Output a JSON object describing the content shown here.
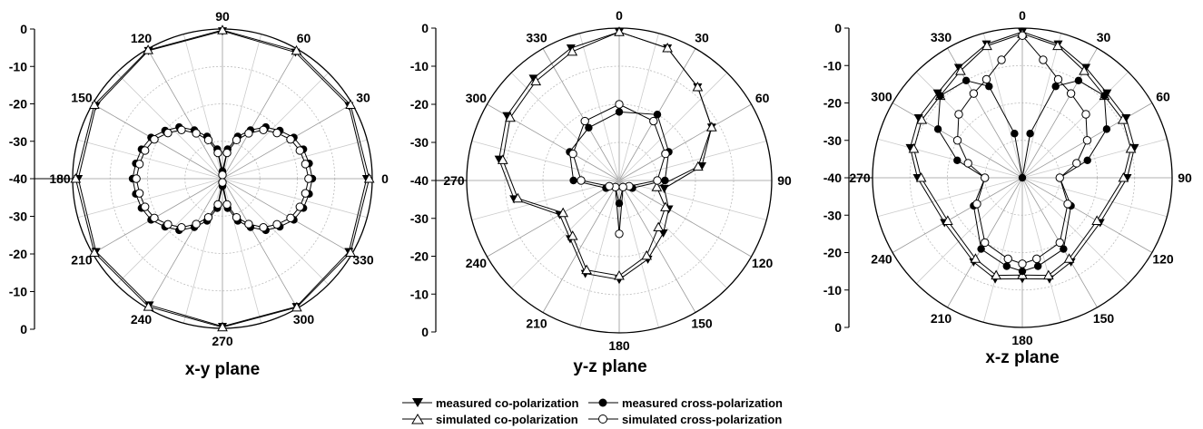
{
  "legend": {
    "entries": [
      {
        "label": "measured co-polarization",
        "marker": "down-triangle-filled"
      },
      {
        "label": "measured cross-polarization",
        "marker": "circle-filled"
      },
      {
        "label": "simulated co-polarization",
        "marker": "up-triangle-open"
      },
      {
        "label": "simulated cross-polarization",
        "marker": "circle-open"
      }
    ]
  },
  "chart_data": [
    {
      "type": "polar",
      "title": "x-y plane",
      "angle_labels": [
        "0",
        "30",
        "60",
        "90",
        "120",
        "150",
        "180",
        "210",
        "240",
        "270",
        "300",
        "330"
      ],
      "angle_zero_at": "right",
      "angle_direction": "counterclockwise",
      "radial_range_dB": [
        -40,
        0
      ],
      "radial_tick_labels_upper": [
        "0",
        "-10",
        "-20",
        "-30",
        "-40"
      ],
      "radial_tick_labels_lower": [
        "-30",
        "-20",
        "-10",
        "0"
      ],
      "grid": true,
      "series": [
        {
          "name": "measured co-polarization",
          "angles": [
            0,
            30,
            60,
            90,
            120,
            150,
            180,
            210,
            240,
            270,
            300,
            330,
            360
          ],
          "values": [
            -1.5,
            -1,
            -1,
            -0.5,
            -0.5,
            -1,
            -1.5,
            -1,
            -1,
            -0.5,
            -0.5,
            -1,
            -1.5
          ]
        },
        {
          "name": "simulated co-polarization",
          "angles": [
            0,
            30,
            60,
            90,
            120,
            150,
            180,
            210,
            240,
            270,
            300,
            330,
            360
          ],
          "values": [
            -0.8,
            -0.5,
            -0.5,
            -0.3,
            -0.3,
            -0.5,
            -0.8,
            -0.5,
            -0.5,
            -0.3,
            -0.3,
            -0.5,
            -0.8
          ]
        },
        {
          "name": "measured cross-polarization",
          "angles": [
            0,
            10,
            20,
            30,
            40,
            50,
            60,
            70,
            80,
            90,
            100,
            110,
            120,
            130,
            140,
            150,
            160,
            170,
            180,
            190,
            200,
            210,
            220,
            230,
            240,
            250,
            260,
            270,
            280,
            290,
            300,
            310,
            320,
            330,
            340,
            350,
            360
          ],
          "values": [
            -16,
            -16.5,
            -17,
            -18,
            -20,
            -22,
            -25,
            -28,
            -32,
            -38,
            -32,
            -28,
            -25,
            -22,
            -20,
            -18,
            -17,
            -16.5,
            -16,
            -16.5,
            -17,
            -18,
            -20,
            -22,
            -25,
            -28,
            -32,
            -38,
            -32,
            -28,
            -25,
            -22,
            -20,
            -18,
            -17,
            -16.5,
            -16
          ]
        },
        {
          "name": "simulated cross-polarization",
          "angles": [
            0,
            10,
            20,
            30,
            40,
            50,
            60,
            70,
            80,
            90,
            100,
            110,
            120,
            130,
            140,
            150,
            160,
            170,
            180,
            190,
            200,
            210,
            220,
            230,
            240,
            250,
            260,
            270,
            280,
            290,
            300,
            310,
            320,
            330,
            340,
            350,
            360
          ],
          "values": [
            -17,
            -17.5,
            -18,
            -19,
            -21,
            -23,
            -26,
            -29,
            -33,
            -39,
            -33,
            -29,
            -26,
            -23,
            -21,
            -19,
            -18,
            -17.5,
            -17,
            -17.5,
            -18,
            -19,
            -21,
            -23,
            -26,
            -29,
            -33,
            -39,
            -33,
            -29,
            -26,
            -23,
            -21,
            -19,
            -18,
            -17.5,
            -17
          ]
        }
      ]
    },
    {
      "type": "polar",
      "title": "y-z plane",
      "angle_labels": [
        "0",
        "30",
        "60",
        "90",
        "120",
        "150",
        "180",
        "210",
        "240",
        "270",
        "300",
        "330"
      ],
      "angle_zero_at": "top",
      "angle_direction": "clockwise",
      "radial_range_dB": [
        -40,
        0
      ],
      "radial_tick_labels_upper": [
        "0",
        "-10",
        "-20",
        "-30",
        "-40"
      ],
      "radial_tick_labels_lower": [
        "-30",
        "-20",
        "-10",
        "0"
      ],
      "grid": true,
      "series": [
        {
          "name": "measured co-polarization",
          "angles": [
            0,
            20,
            40,
            60,
            80,
            100,
            120,
            140,
            160,
            180,
            200,
            220,
            240,
            260,
            280,
            300,
            320,
            340,
            360
          ],
          "values": [
            -1,
            -3,
            -8,
            -12,
            -18,
            -28,
            -25,
            -22,
            -18,
            -14,
            -14,
            -20,
            -22,
            -12,
            -8,
            -6,
            -5,
            -3,
            -1
          ]
        },
        {
          "name": "simulated co-polarization",
          "angles": [
            0,
            20,
            40,
            60,
            80,
            100,
            120,
            140,
            160,
            180,
            200,
            220,
            240,
            260,
            280,
            300,
            320,
            340,
            360
          ],
          "values": [
            -1,
            -3,
            -8,
            -12,
            -19,
            -30,
            -26,
            -24,
            -19,
            -15,
            -15,
            -21,
            -23,
            -13,
            -9,
            -7,
            -6,
            -4,
            -1
          ]
        },
        {
          "name": "measured cross-polarization",
          "angles": [
            0,
            30,
            60,
            90,
            120,
            150,
            180,
            210,
            240,
            270,
            300,
            330,
            360
          ],
          "values": [
            -22,
            -20,
            -25,
            -28,
            -36,
            -38,
            -34,
            -38,
            -36,
            -28,
            -25,
            -24,
            -22
          ]
        },
        {
          "name": "simulated cross-polarization",
          "angles": [
            0,
            30,
            60,
            90,
            120,
            150,
            180,
            210,
            240,
            270,
            300,
            330,
            360
          ],
          "values": [
            -20,
            -22,
            -26,
            -30,
            -37,
            -38,
            -26,
            -38,
            -37,
            -30,
            -26,
            -22,
            -20
          ]
        }
      ]
    },
    {
      "type": "polar",
      "title": "x-z plane",
      "angle_labels": [
        "0",
        "30",
        "60",
        "90",
        "120",
        "150",
        "180",
        "210",
        "240",
        "270",
        "300",
        "330"
      ],
      "angle_zero_at": "top",
      "angle_direction": "clockwise",
      "radial_range_dB": [
        -40,
        0
      ],
      "radial_tick_labels_upper": [
        "0",
        "-10",
        "-20",
        "-30",
        "-40"
      ],
      "radial_tick_labels_lower": [
        "-30",
        "-20",
        "-10",
        "0"
      ],
      "grid": true,
      "series": [
        {
          "name": "measured co-polarization",
          "angles": [
            0,
            15,
            30,
            45,
            60,
            75,
            90,
            120,
            150,
            165,
            180,
            195,
            210,
            240,
            270,
            285,
            300,
            315,
            330,
            345,
            360
          ],
          "values": [
            -1,
            -3,
            -6,
            -8,
            -8,
            -9,
            -12,
            -16,
            -14,
            -12,
            -13,
            -12,
            -14,
            -16,
            -12,
            -9,
            -8,
            -8,
            -6,
            -3,
            -1
          ]
        },
        {
          "name": "simulated co-polarization",
          "angles": [
            0,
            15,
            30,
            45,
            60,
            75,
            90,
            120,
            150,
            165,
            180,
            195,
            210,
            240,
            270,
            285,
            300,
            315,
            330,
            345,
            360
          ],
          "values": [
            -1.5,
            -3.5,
            -7,
            -9,
            -9,
            -10,
            -13,
            -17,
            -15,
            -13,
            -14,
            -13,
            -15,
            -17,
            -13,
            -10,
            -9,
            -9,
            -7,
            -3.5,
            -1.5
          ]
        },
        {
          "name": "measured cross-polarization",
          "angles": [
            0,
            10,
            20,
            30,
            45,
            60,
            75,
            90,
            120,
            150,
            170,
            180,
            190,
            210,
            240,
            270,
            285,
            300,
            315,
            330,
            340,
            350,
            360
          ],
          "values": [
            -40,
            -28,
            -14,
            -10,
            -9,
            -14,
            -22,
            -30,
            -25,
            -18,
            -16,
            -15,
            -16,
            -18,
            -25,
            -30,
            -22,
            -14,
            -9,
            -10,
            -14,
            -28,
            -40
          ]
        },
        {
          "name": "simulated cross-polarization",
          "angles": [
            0,
            10,
            20,
            30,
            45,
            60,
            75,
            90,
            120,
            150,
            170,
            180,
            190,
            210,
            240,
            270,
            285,
            300,
            315,
            330,
            340,
            350,
            360
          ],
          "values": [
            -2,
            -8,
            -12,
            -14,
            -16,
            -20,
            -25,
            -30,
            -26,
            -20,
            -18,
            -17,
            -18,
            -20,
            -26,
            -30,
            -25,
            -20,
            -16,
            -14,
            -12,
            -8,
            -2
          ]
        }
      ]
    }
  ]
}
